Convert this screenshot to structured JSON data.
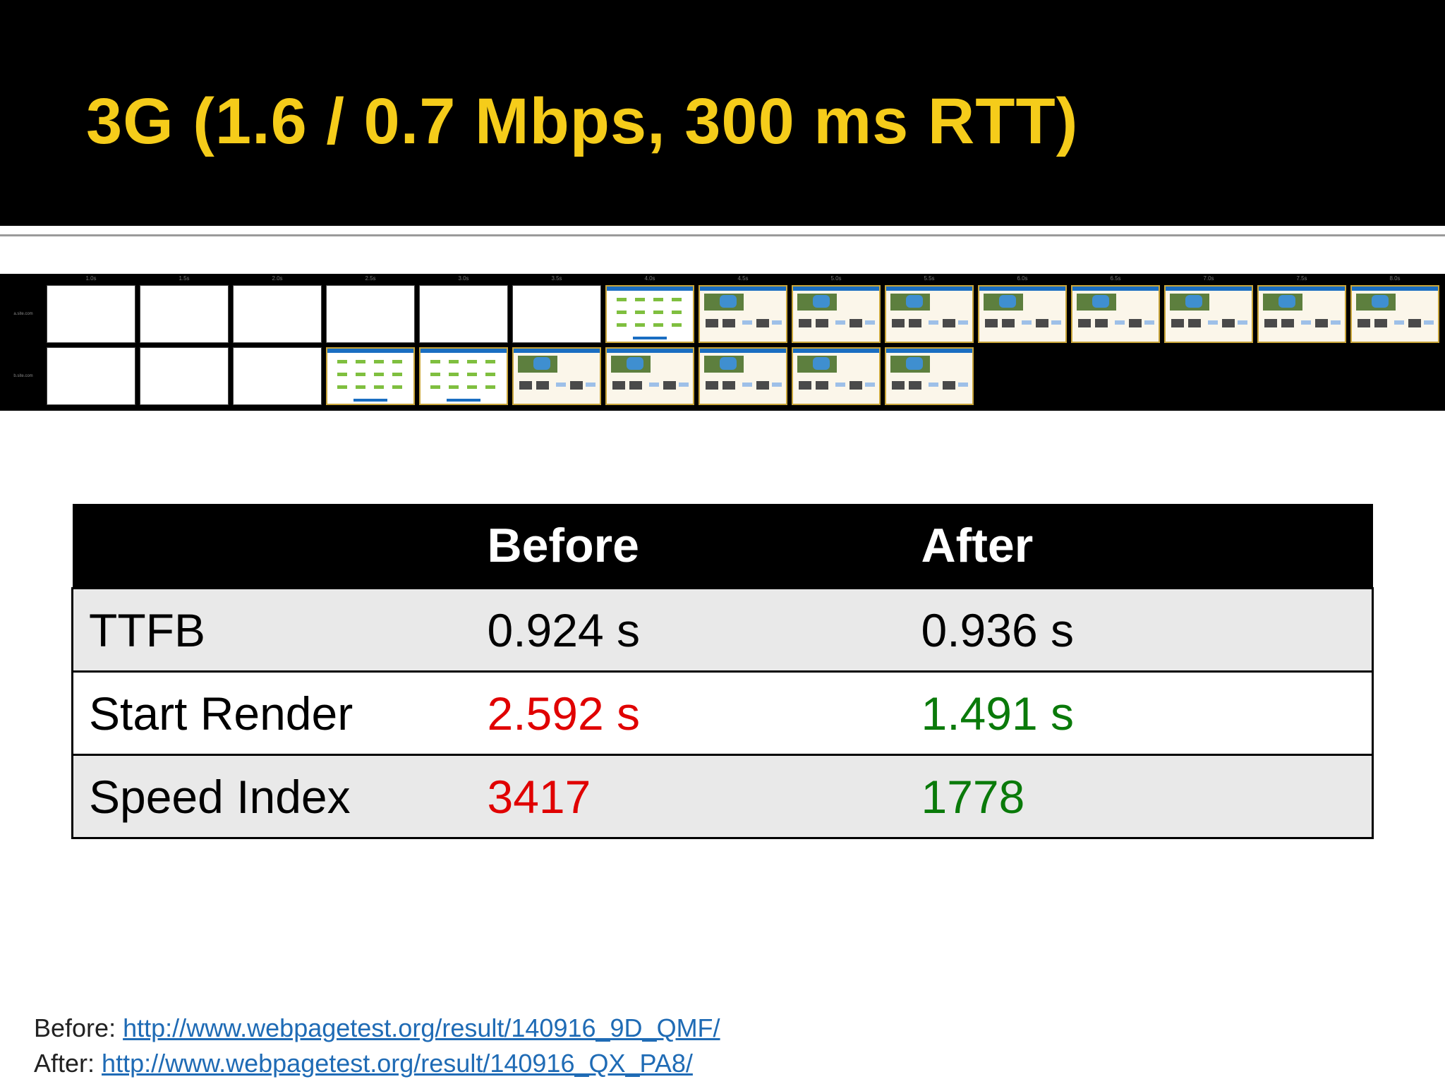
{
  "slide": {
    "title": "3G (1.6 / 0.7 Mbps, 300 ms RTT)"
  },
  "filmstrip": {
    "times": [
      "1.0s",
      "1.5s",
      "2.0s",
      "2.5s",
      "3.0s",
      "3.5s",
      "4.0s",
      "4.5s",
      "5.0s",
      "5.5s",
      "6.0s",
      "6.5s",
      "7.0s",
      "7.5s",
      "8.0s"
    ],
    "row_labels": [
      "a.site.com",
      "b.site.com"
    ],
    "rows": [
      [
        "blank",
        "blank",
        "blank",
        "blank",
        "blank",
        "blank",
        "early",
        "full",
        "full",
        "full",
        "full",
        "full",
        "full",
        "full",
        "full"
      ],
      [
        "blank",
        "blank",
        "blank",
        "early",
        "early",
        "full",
        "full",
        "full",
        "full",
        "full"
      ]
    ]
  },
  "table": {
    "headers": [
      "",
      "Before",
      "After"
    ],
    "rows": [
      {
        "metric": "TTFB",
        "before": "0.924 s",
        "after": "0.936 s"
      },
      {
        "metric": "Start Render",
        "before": "2.592 s",
        "after": "1.491 s"
      },
      {
        "metric": "Speed Index",
        "before": "3417",
        "after": "1778"
      }
    ]
  },
  "footer": {
    "before_label": "Before:",
    "before_link": "http://www.webpagetest.org/result/140916_9D_QMF/",
    "after_label": "After:",
    "after_link": "http://www.webpagetest.org/result/140916_QX_PA8/"
  },
  "colors": {
    "title": "#f5cc1a",
    "worse": "#e00000",
    "better": "#0a7a0a",
    "link": "#1f6bb5"
  }
}
